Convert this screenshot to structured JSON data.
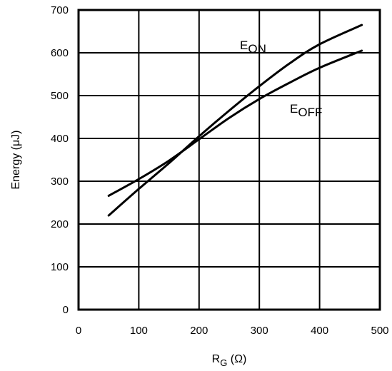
{
  "chart_data": {
    "type": "line",
    "title": "",
    "xlabel": {
      "main": "R",
      "sub": "G",
      "unit": " (Ω)"
    },
    "ylabel": "Energy (μJ)",
    "xlim": [
      0,
      500
    ],
    "ylim": [
      0,
      700
    ],
    "x_ticks": [
      "0",
      "100",
      "200",
      "300",
      "400",
      "500"
    ],
    "y_ticks": [
      "0",
      "100",
      "200",
      "300",
      "400",
      "500",
      "600",
      "700"
    ],
    "grid": true,
    "legend": "inline labels",
    "series": [
      {
        "name": "E",
        "name_sub": "ON",
        "x": [
          50,
          100,
          150,
          200,
          250,
          300,
          350,
          400,
          470
        ],
        "y": [
          220,
          282,
          342,
          405,
          465,
          522,
          575,
          620,
          665
        ]
      },
      {
        "name": "E",
        "name_sub": "OFF",
        "x": [
          50,
          100,
          150,
          200,
          250,
          300,
          350,
          400,
          470
        ],
        "y": [
          266,
          305,
          348,
          398,
          448,
          492,
          530,
          565,
          605
        ]
      }
    ]
  }
}
